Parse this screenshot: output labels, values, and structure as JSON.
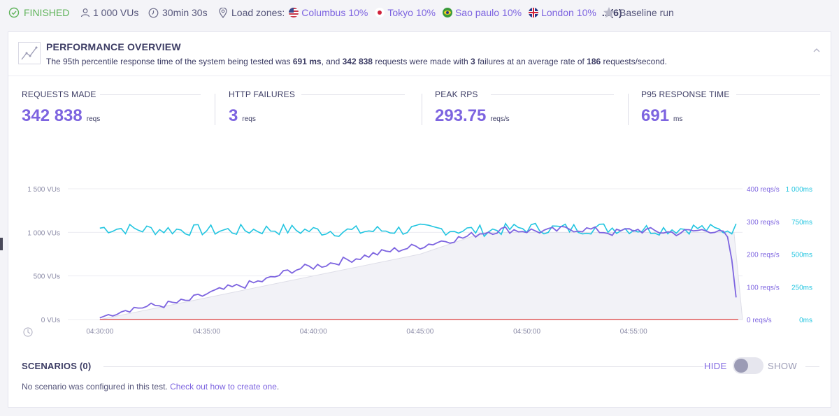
{
  "topbar": {
    "status": "FINISHED",
    "vus": "1 000 VUs",
    "duration": "30min 30s",
    "load_zones_label": "Load zones:",
    "zones": [
      {
        "name": "Columbus",
        "pct": "10%",
        "flag": "us-flag-icon"
      },
      {
        "name": "Tokyo",
        "pct": "10%",
        "flag": "japan-flag-icon"
      },
      {
        "name": "Sao paulo",
        "pct": "10%",
        "flag": "brazil-flag-icon"
      },
      {
        "name": "London",
        "pct": "10%",
        "flag": "uk-flag-icon"
      }
    ],
    "more": "...(6)",
    "baseline": "Baseline run"
  },
  "overview": {
    "title": "PERFORMANCE OVERVIEW",
    "desc_1": "The 95th percentile response time of the system being tested was ",
    "p95": "691 ms",
    "desc_2": ", and ",
    "requests": "342 838",
    "desc_3": " requests were made with ",
    "failures": "3",
    "desc_4": " failures at an average rate of ",
    "rate": "186",
    "desc_5": " requests/second."
  },
  "stats": [
    {
      "label": "REQUESTS MADE",
      "value": "342 838",
      "unit": "reqs"
    },
    {
      "label": "HTTP FAILURES",
      "value": "3",
      "unit": "reqs"
    },
    {
      "label": "PEAK RPS",
      "value": "293.75",
      "unit": "reqs/s"
    },
    {
      "label": "P95 RESPONSE TIME",
      "value": "691",
      "unit": "ms"
    }
  ],
  "chart_data": {
    "type": "line",
    "x_ticks": [
      "04:30:00",
      "04:35:00",
      "04:40:00",
      "04:45:00",
      "04:50:00",
      "04:55:00"
    ],
    "y_left_ticks": [
      "1 500 VUs",
      "1 000 VUs",
      "500 VUs",
      "0 VUs"
    ],
    "y_right_rps_ticks": [
      "400 reqs/s",
      "300 reqs/s",
      "200 reqs/s",
      "100 reqs/s",
      "0 reqs/s"
    ],
    "y_right_ms_ticks": [
      "1 000ms",
      "750ms",
      "500ms",
      "250ms",
      "0ms"
    ],
    "grid": true,
    "colors": {
      "vus": "#d8d8e2",
      "rps": "#7d64e0",
      "response": "#22c5e0",
      "failures": "#e05a5a"
    },
    "series": [
      {
        "key": "vus",
        "unit": "VUs",
        "x_minutes": [
          0,
          5,
          10,
          15,
          18,
          25,
          29.7,
          30.1
        ],
        "values": [
          0,
          250,
          500,
          750,
          1000,
          1000,
          1000,
          0
        ]
      },
      {
        "key": "rps",
        "unit": "reqs/s",
        "x_minutes": [
          0,
          1,
          2,
          3,
          4,
          5,
          6,
          7,
          8,
          9,
          10,
          11,
          12,
          13,
          14,
          15,
          16,
          17,
          18,
          19,
          20,
          21,
          22,
          23,
          24,
          25,
          26,
          27,
          28,
          29,
          29.5,
          29.9
        ],
        "values": [
          5,
          30,
          38,
          45,
          55,
          78,
          95,
          108,
          125,
          152,
          162,
          175,
          188,
          202,
          215,
          225,
          240,
          250,
          268,
          275,
          272,
          270,
          278,
          275,
          265,
          275,
          270,
          265,
          272,
          275,
          240,
          10
        ]
      },
      {
        "key": "response",
        "unit": "ms",
        "x_minutes": [
          0,
          2,
          4,
          6,
          8,
          10,
          12,
          14,
          16,
          18,
          20,
          22,
          24,
          26,
          28,
          29,
          29.9
        ],
        "values": [
          700,
          690,
          685,
          680,
          690,
          680,
          675,
          685,
          690,
          680,
          700,
          695,
          700,
          690,
          700,
          680,
          700
        ]
      },
      {
        "key": "failures",
        "unit": "reqs/s",
        "x_minutes": [
          0,
          29.9
        ],
        "values": [
          0,
          0
        ]
      }
    ]
  },
  "scenarios": {
    "title": "SCENARIOS (0)",
    "hide": "HIDE",
    "show": "SHOW",
    "message": "No scenario was configured in this test. ",
    "link": "Check out how to create one",
    "link_end": "."
  }
}
